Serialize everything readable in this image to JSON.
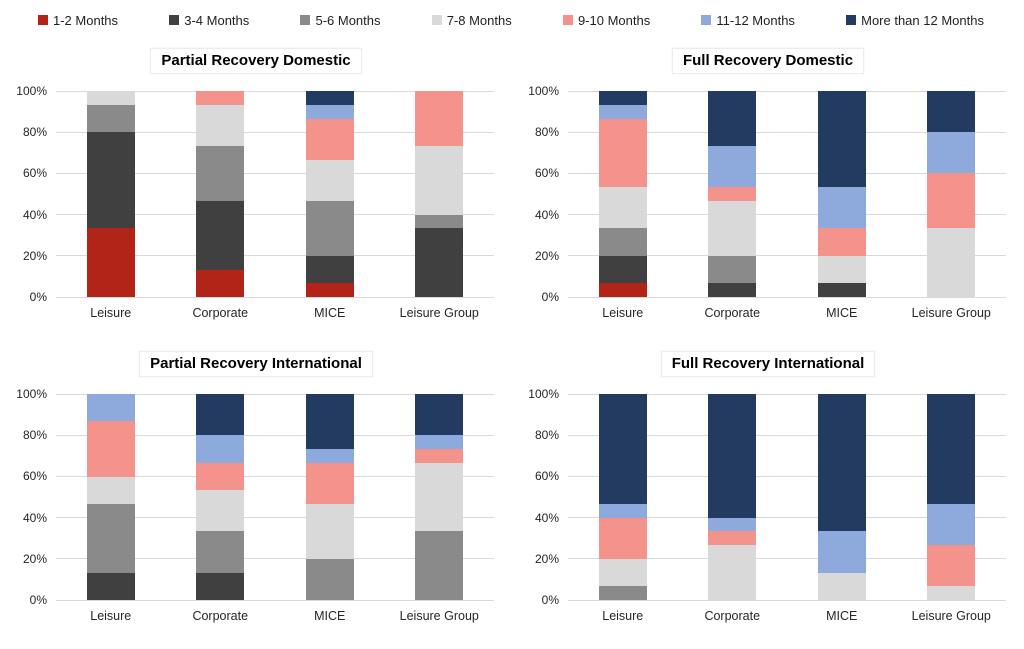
{
  "legend": {
    "items": [
      {
        "label": "1-2 Months",
        "color": "#b22418"
      },
      {
        "label": "3-4 Months",
        "color": "#404040"
      },
      {
        "label": "5-6 Months",
        "color": "#8a8a8a"
      },
      {
        "label": "7-8 Months",
        "color": "#d9d9d9"
      },
      {
        "label": "9-10 Months",
        "color": "#f4938c"
      },
      {
        "label": "11-12 Months",
        "color": "#8ea9dc"
      },
      {
        "label": "More than 12 Months",
        "color": "#233a61"
      }
    ]
  },
  "axis": {
    "ticks": [
      "100%",
      "80%",
      "60%",
      "40%",
      "20%",
      "0%"
    ]
  },
  "chart_data": [
    {
      "type": "bar",
      "subtype": "stacked-100",
      "title": "Partial Recovery Domestic",
      "categories": [
        "Leisure",
        "Corporate",
        "MICE",
        "Leisure Group"
      ],
      "ylim": [
        0,
        100
      ],
      "grid": true,
      "series": [
        {
          "name": "1-2 Months",
          "color": "#b22418",
          "values": [
            33.3,
            13.3,
            6.7,
            0
          ]
        },
        {
          "name": "3-4 Months",
          "color": "#404040",
          "values": [
            46.7,
            33.3,
            13.3,
            33.3
          ]
        },
        {
          "name": "5-6 Months",
          "color": "#8a8a8a",
          "values": [
            13.3,
            26.7,
            26.7,
            6.7
          ]
        },
        {
          "name": "7-8 Months",
          "color": "#d9d9d9",
          "values": [
            6.7,
            20.0,
            20.0,
            33.3
          ]
        },
        {
          "name": "9-10 Months",
          "color": "#f4938c",
          "values": [
            0,
            6.7,
            20.0,
            26.7
          ]
        },
        {
          "name": "11-12 Months",
          "color": "#8ea9dc",
          "values": [
            0,
            0,
            6.7,
            0
          ]
        },
        {
          "name": "More than 12 Months",
          "color": "#233a61",
          "values": [
            0,
            0,
            6.7,
            0
          ]
        }
      ]
    },
    {
      "type": "bar",
      "subtype": "stacked-100",
      "title": "Full Recovery Domestic",
      "categories": [
        "Leisure",
        "Corporate",
        "MICE",
        "Leisure Group"
      ],
      "ylim": [
        0,
        100
      ],
      "grid": true,
      "series": [
        {
          "name": "1-2 Months",
          "color": "#b22418",
          "values": [
            6.7,
            0,
            0,
            0
          ]
        },
        {
          "name": "3-4 Months",
          "color": "#404040",
          "values": [
            13.3,
            6.7,
            6.7,
            0
          ]
        },
        {
          "name": "5-6 Months",
          "color": "#8a8a8a",
          "values": [
            13.3,
            13.3,
            0,
            0
          ]
        },
        {
          "name": "7-8 Months",
          "color": "#d9d9d9",
          "values": [
            20.0,
            26.7,
            13.3,
            33.3
          ]
        },
        {
          "name": "9-10 Months",
          "color": "#f4938c",
          "values": [
            33.3,
            6.7,
            13.3,
            26.7
          ]
        },
        {
          "name": "11-12 Months",
          "color": "#8ea9dc",
          "values": [
            6.7,
            20.0,
            20.0,
            20.0
          ]
        },
        {
          "name": "More than 12 Months",
          "color": "#233a61",
          "values": [
            6.7,
            26.7,
            46.7,
            20.0
          ]
        }
      ]
    },
    {
      "type": "bar",
      "subtype": "stacked-100",
      "title": "Partial Recovery International",
      "categories": [
        "Leisure",
        "Corporate",
        "MICE",
        "Leisure Group"
      ],
      "ylim": [
        0,
        100
      ],
      "grid": true,
      "series": [
        {
          "name": "1-2 Months",
          "color": "#b22418",
          "values": [
            0,
            0,
            0,
            0
          ]
        },
        {
          "name": "3-4 Months",
          "color": "#404040",
          "values": [
            13.3,
            13.3,
            0,
            0
          ]
        },
        {
          "name": "5-6 Months",
          "color": "#8a8a8a",
          "values": [
            33.3,
            20.0,
            20.0,
            33.3
          ]
        },
        {
          "name": "7-8 Months",
          "color": "#d9d9d9",
          "values": [
            13.3,
            20.0,
            26.7,
            33.3
          ]
        },
        {
          "name": "9-10 Months",
          "color": "#f4938c",
          "values": [
            26.7,
            13.3,
            20.0,
            6.7
          ]
        },
        {
          "name": "11-12 Months",
          "color": "#8ea9dc",
          "values": [
            13.3,
            13.3,
            6.7,
            6.7
          ]
        },
        {
          "name": "More than 12 Months",
          "color": "#233a61",
          "values": [
            0,
            20.0,
            26.7,
            20.0
          ]
        }
      ]
    },
    {
      "type": "bar",
      "subtype": "stacked-100",
      "title": "Full Recovery International",
      "categories": [
        "Leisure",
        "Corporate",
        "MICE",
        "Leisure Group"
      ],
      "ylim": [
        0,
        100
      ],
      "grid": true,
      "series": [
        {
          "name": "1-2 Months",
          "color": "#b22418",
          "values": [
            0,
            0,
            0,
            0
          ]
        },
        {
          "name": "3-4 Months",
          "color": "#404040",
          "values": [
            0,
            0,
            0,
            0
          ]
        },
        {
          "name": "5-6 Months",
          "color": "#8a8a8a",
          "values": [
            6.7,
            0,
            0,
            0
          ]
        },
        {
          "name": "7-8 Months",
          "color": "#d9d9d9",
          "values": [
            13.3,
            26.7,
            13.3,
            6.7
          ]
        },
        {
          "name": "9-10 Months",
          "color": "#f4938c",
          "values": [
            20.0,
            6.7,
            0,
            20.0
          ]
        },
        {
          "name": "11-12 Months",
          "color": "#8ea9dc",
          "values": [
            6.7,
            6.7,
            20.0,
            20.0
          ]
        },
        {
          "name": "More than 12 Months",
          "color": "#233a61",
          "values": [
            53.3,
            60.0,
            66.7,
            53.3
          ]
        }
      ]
    }
  ]
}
